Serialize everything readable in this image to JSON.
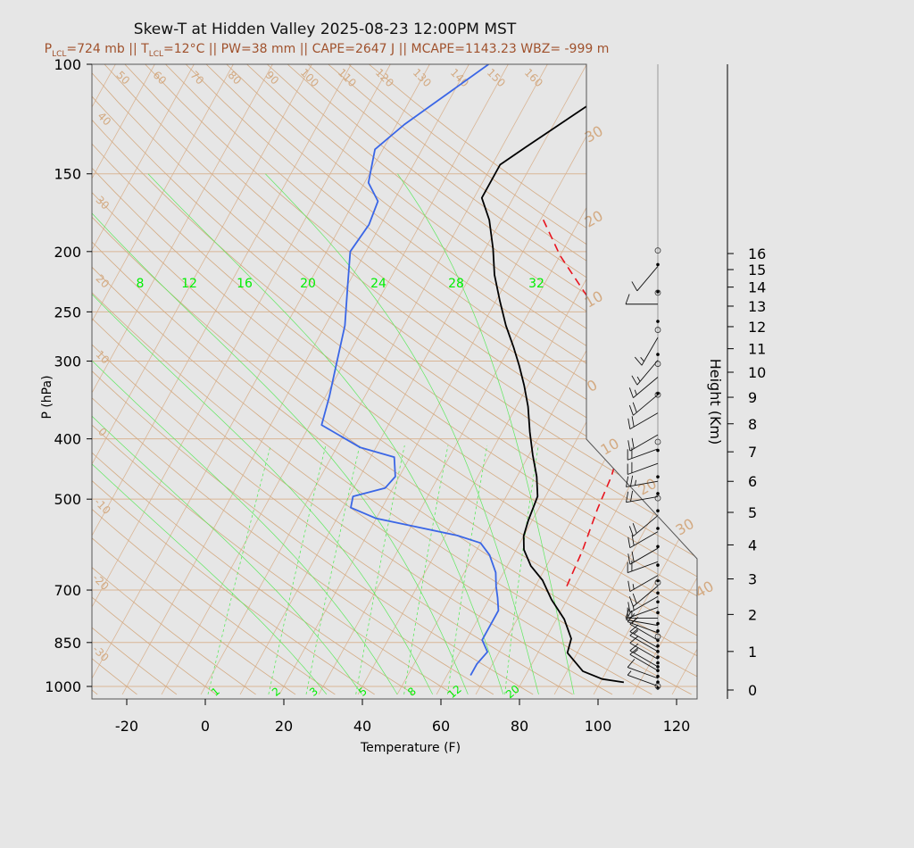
{
  "figure": {
    "title": "Skew-T at Hidden Valley 2025-08-23 12:00PM MST",
    "subtitle": {
      "p_lcl": "=724 mb || ",
      "t_lcl": "=12°C || PW=38 mm || CAPE=2647 J || MCAPE=1143.23 WBZ= -999 m"
    }
  },
  "colors": {
    "background": "#e6e6e6",
    "isotherm": "#d9b595",
    "dry_adiabat": "#d3aa82",
    "mixing_ratio": "#5ee85e",
    "mixing_label": "#00ee00",
    "temperature": "#000000",
    "dewpoint": "#3a66e6",
    "parcel": "#e8141e",
    "subtitle": "#a0522d"
  },
  "chart_data": {
    "type": "line",
    "xlabel": "Temperature (F)",
    "ylabel": "P (hPa)",
    "y2label": "Height (Km)",
    "xlim": [
      -28,
      126
    ],
    "ylim": [
      1030,
      100
    ],
    "y_scale": "log",
    "x_ticks": [
      "-20",
      "0",
      "20",
      "40",
      "60",
      "80",
      "100",
      "120"
    ],
    "p_ticks": [
      "100",
      "150",
      "200",
      "250",
      "300",
      "400",
      "500",
      "700",
      "850",
      "1000"
    ],
    "height_ticks": [
      "0",
      "1",
      "2",
      "3",
      "4",
      "5",
      "6",
      "7",
      "8",
      "9",
      "10",
      "11",
      "12",
      "13",
      "14",
      "15",
      "16"
    ],
    "isotherm_labels": [
      "50",
      "60",
      "70",
      "80",
      "90",
      "100",
      "110",
      "120",
      "130",
      "140",
      "150",
      "160",
      "30",
      "20",
      "10",
      "0",
      "10",
      "20",
      "30",
      "40",
      "40",
      "30",
      "20",
      "10",
      "0",
      "-10",
      "-20",
      "-30"
    ],
    "mixing_ratio_labels": [
      "8",
      "12",
      "16",
      "20",
      "24",
      "28",
      "32"
    ],
    "mixing_ratio_bottom_labels": [
      "1",
      "2",
      "3",
      "5",
      "8",
      "12",
      "20"
    ],
    "series": [
      {
        "key": "temperature",
        "points": [
          [
            106,
            985
          ],
          [
            100,
            973
          ],
          [
            94,
            945
          ],
          [
            87.5,
            883
          ],
          [
            86.5,
            838
          ],
          [
            82,
            780
          ],
          [
            76,
            725
          ],
          [
            71,
            675
          ],
          [
            66,
            640
          ],
          [
            62,
            603
          ],
          [
            60,
            573
          ],
          [
            59,
            541
          ],
          [
            58,
            495
          ],
          [
            55,
            460
          ],
          [
            51,
            425
          ],
          [
            47,
            390
          ],
          [
            43,
            355
          ],
          [
            39,
            328
          ],
          [
            35,
            305
          ],
          [
            31,
            285
          ],
          [
            26,
            263
          ],
          [
            21,
            240
          ],
          [
            16,
            218
          ],
          [
            12,
            198
          ],
          [
            7,
            178
          ],
          [
            2,
            164
          ],
          [
            2,
            145
          ],
          [
            6,
            136
          ],
          [
            12,
            124
          ],
          [
            18,
            113
          ],
          [
            24,
            100
          ]
        ]
      },
      {
        "key": "dewpoint",
        "points": [
          [
            66,
            960
          ],
          [
            66,
            920
          ],
          [
            67,
            880
          ],
          [
            64,
            842
          ],
          [
            64,
            820
          ],
          [
            64,
            795
          ],
          [
            64,
            755
          ],
          [
            62,
            720
          ],
          [
            60,
            690
          ],
          [
            58,
            656
          ],
          [
            54,
            615
          ],
          [
            50,
            588
          ],
          [
            43,
            572
          ],
          [
            20,
            537
          ],
          [
            12,
            516
          ],
          [
            11,
            495
          ],
          [
            18,
            480
          ],
          [
            19,
            460
          ],
          [
            16,
            428
          ],
          [
            6,
            413
          ],
          [
            -7,
            380
          ],
          [
            -9,
            342
          ],
          [
            -12,
            300
          ],
          [
            -15,
            263
          ],
          [
            -20,
            226
          ],
          [
            -24,
            200
          ],
          [
            -23,
            181
          ],
          [
            -24,
            166
          ],
          [
            -29,
            155
          ],
          [
            -32,
            137
          ],
          [
            -28,
            125
          ],
          [
            -15,
            100
          ]
        ]
      },
      {
        "key": "parcel",
        "points": [
          [
            78,
            690
          ],
          [
            77,
            605
          ],
          [
            75,
            518
          ],
          [
            74,
            460
          ],
          [
            72,
            410
          ],
          [
            66,
            345
          ],
          [
            58,
            290
          ],
          [
            44,
            240
          ],
          [
            30,
            203
          ],
          [
            20,
            176
          ]
        ]
      }
    ],
    "wind_profile": [
      {
        "h": 0.1,
        "dir": 290,
        "spd": 5
      },
      {
        "h": 0.3,
        "dir": 290,
        "spd": 10
      },
      {
        "h": 0.5,
        "dir": 300,
        "spd": 10
      },
      {
        "h": 0.6,
        "dir": 300,
        "spd": 15
      },
      {
        "h": 0.8,
        "dir": 300,
        "spd": 10
      },
      {
        "h": 1.0,
        "dir": 300,
        "spd": 10
      },
      {
        "h": 1.1,
        "dir": 300,
        "spd": 15
      },
      {
        "h": 1.3,
        "dir": 300,
        "spd": 10
      },
      {
        "h": 1.5,
        "dir": 290,
        "spd": 15
      },
      {
        "h": 1.7,
        "dir": 280,
        "spd": 10
      },
      {
        "h": 1.9,
        "dir": 270,
        "spd": 10
      },
      {
        "h": 2.2,
        "dir": 250,
        "spd": 15
      },
      {
        "h": 2.5,
        "dir": 240,
        "spd": 15
      },
      {
        "h": 2.8,
        "dir": 230,
        "spd": 20
      },
      {
        "h": 3.1,
        "dir": 240,
        "spd": 15
      },
      {
        "h": 3.5,
        "dir": 250,
        "spd": 20
      },
      {
        "h": 3.9,
        "dir": 240,
        "spd": 20
      },
      {
        "h": 4.4,
        "dir": 240,
        "spd": 20
      },
      {
        "h": 4.9,
        "dir": 230,
        "spd": 20
      },
      {
        "h": 5.5,
        "dir": 260,
        "spd": 20
      },
      {
        "h": 6.0,
        "dir": 260,
        "spd": 25
      },
      {
        "h": 6.6,
        "dir": 250,
        "spd": 20
      },
      {
        "h": 7.1,
        "dir": 250,
        "spd": 20
      },
      {
        "h": 7.6,
        "dir": 240,
        "spd": 20
      },
      {
        "h": 8.4,
        "dir": 240,
        "spd": 20
      },
      {
        "h": 9.1,
        "dir": 230,
        "spd": 20
      },
      {
        "h": 9.8,
        "dir": 230,
        "spd": 15
      },
      {
        "h": 10.5,
        "dir": 220,
        "spd": 15
      },
      {
        "h": 11.5,
        "dir": 210,
        "spd": 15
      },
      {
        "h": 13.1,
        "dir": 270,
        "spd": 10
      },
      {
        "h": 15.2,
        "dir": 220,
        "spd": 10
      }
    ],
    "wind_dots": [
      0.05,
      0.2,
      0.35,
      0.5,
      0.6,
      0.7,
      0.85,
      1.0,
      1.15,
      1.3,
      1.55,
      1.75,
      2.05,
      2.35,
      2.6,
      2.95,
      3.4,
      3.95,
      4.5,
      5.05,
      5.6,
      6.15,
      7.05,
      9.15,
      10.75,
      12.25,
      13.75,
      15.3
    ],
    "wind_circles": [
      0.1,
      1.4,
      2.9,
      5.45,
      7.35,
      9.1,
      10.35,
      11.85,
      13.7,
      16.2
    ]
  }
}
